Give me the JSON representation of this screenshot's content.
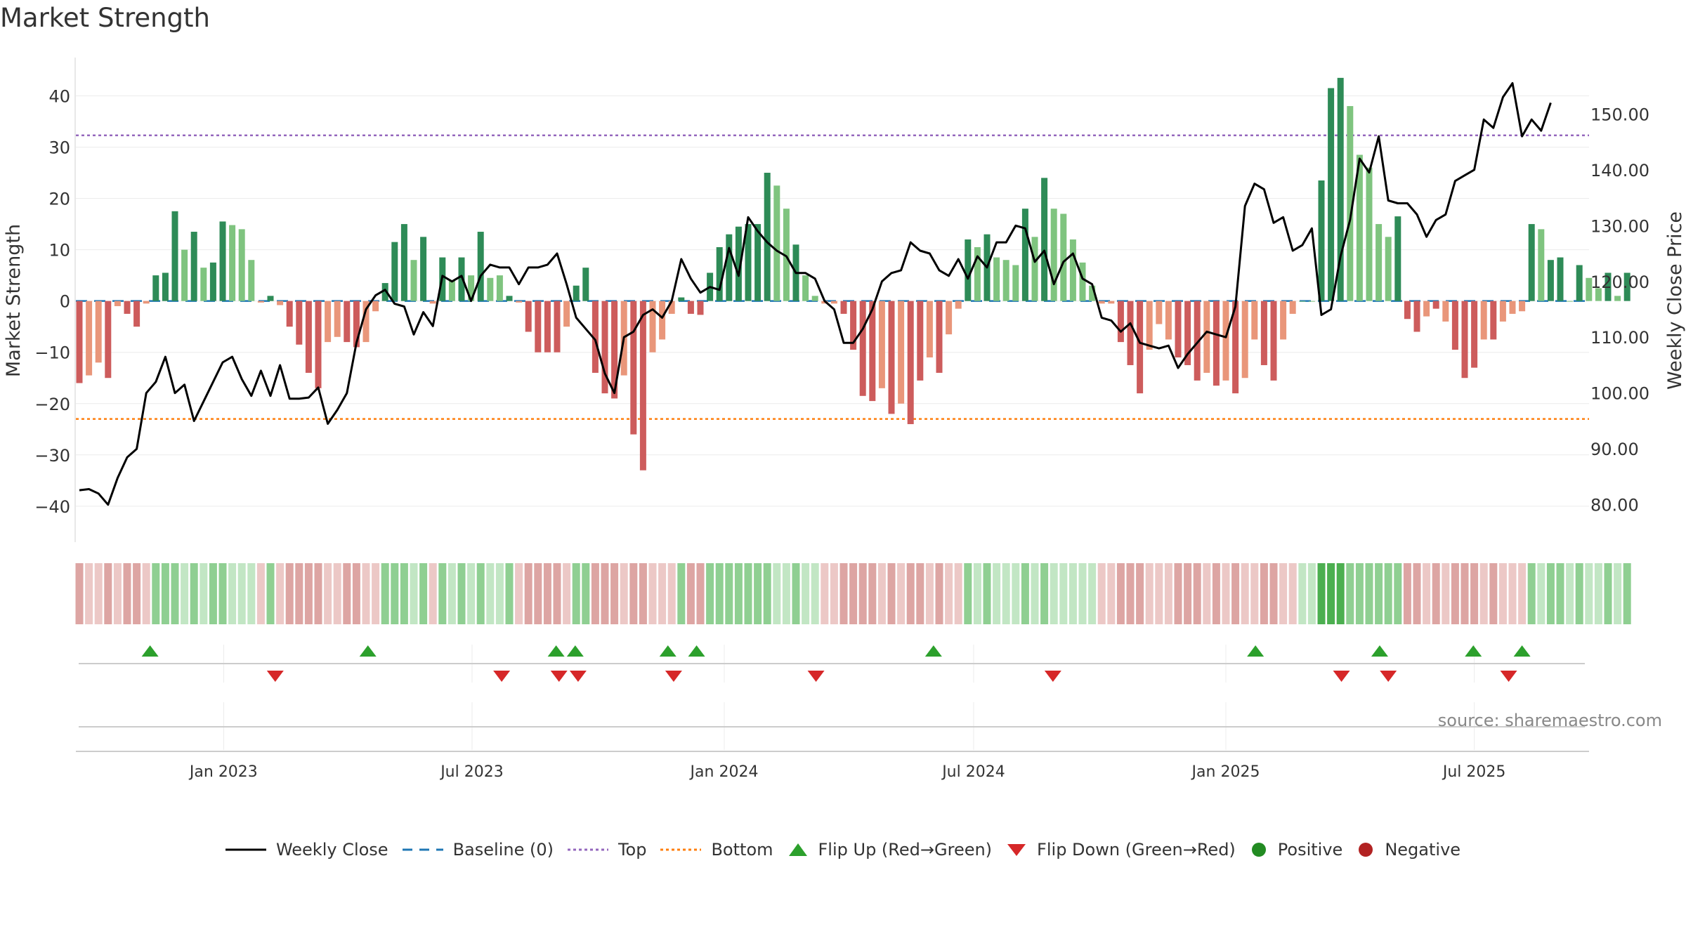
{
  "chart_data": {
    "type": "bar",
    "title": "Market Strength",
    "ylabel": "Market Strength",
    "y2label": "Weekly Close Price",
    "ylim": [
      -47,
      48
    ],
    "y2lim": [
      73.3,
      160.6
    ],
    "yticks": [
      40,
      30,
      20,
      10,
      0,
      -10,
      -20,
      -30,
      -40
    ],
    "yticklabels": [
      "40",
      "30",
      "20",
      "10",
      "0",
      "−10",
      "−20",
      "−30",
      "−40"
    ],
    "y2ticks": [
      150,
      140,
      130,
      120,
      110,
      100,
      90,
      80
    ],
    "y2ticklabels": [
      "150.00",
      "140.00",
      "130.00",
      "120.00",
      "110.00",
      "100.00",
      "90.00",
      "80.00"
    ],
    "xtick_labels": [
      "Jan 2023",
      "Jul 2023",
      "Jan 2024",
      "Jul 2024",
      "Jan 2025",
      "Jul 2025"
    ],
    "xtick_index": [
      15.1,
      41.1,
      67.5,
      93.6,
      120.0,
      146.0
    ],
    "top_line": 32.3,
    "bottom_line": -23.0,
    "grid": true,
    "colors": {
      "pos_strong": "#2e8b57",
      "pos_light": "#7fc47f",
      "neg_strong": "#cd5c5c",
      "neg_light": "#e9967a",
      "close_line": "#000000",
      "baseline": "#1f77b4",
      "top": "#9467bd",
      "bottom": "#ff7f0e",
      "flip_up": "#2ca02c",
      "flip_down": "#d62728"
    },
    "strength": [
      -16,
      -14.5,
      -12,
      -15,
      -1,
      -2.5,
      -5,
      -0.5,
      5,
      5.5,
      17.5,
      10,
      13.5,
      6.5,
      7.5,
      15.5,
      14.8,
      14,
      8,
      -0.3,
      1,
      -0.8,
      -5,
      -8.5,
      -14,
      -17,
      -8,
      -7,
      -8,
      -9,
      -8,
      -2,
      3.5,
      11.5,
      15,
      8,
      12.5,
      -0.5,
      8.5,
      4,
      8.5,
      5,
      13.5,
      4.5,
      5,
      1,
      -0.3,
      -6,
      -10,
      -10,
      -10,
      -5,
      3,
      6.5,
      -14,
      -18,
      -19,
      -14.5,
      -26,
      -33,
      -10,
      -7.5,
      -2.5,
      0.7,
      -2.5,
      -2.7,
      5.5,
      10.5,
      13,
      14.5,
      15,
      15,
      25,
      22.5,
      18,
      11,
      5,
      1,
      -0.5,
      -0.5,
      -2.5,
      -9.5,
      -18.5,
      -19.5,
      -17,
      -22,
      -20,
      -24,
      -15.5,
      -11,
      -14,
      -6.5,
      -1.5,
      12,
      10.5,
      13,
      8.5,
      8,
      7,
      18,
      12.5,
      24,
      18,
      17,
      12,
      7.5,
      3,
      -0.5,
      -0.5,
      -8,
      -12.5,
      -18,
      -9.5,
      -4.5,
      -7.5,
      -11,
      -12.5,
      -15.5,
      -14,
      -16.5,
      -15.5,
      -18,
      -15,
      -7.5,
      -12.5,
      -15.5,
      -7.5,
      -2.5,
      0,
      0,
      23.5,
      41.5,
      43.5,
      38,
      28.5,
      26,
      15,
      12.5,
      16.5,
      -3.5,
      -6,
      -3,
      -1.5,
      -4,
      -9.5,
      -15,
      -13,
      -7.5,
      -7.5,
      -4,
      -2.5,
      -2,
      15,
      14,
      8,
      8.5,
      0,
      7,
      4.5,
      2.5,
      5.5,
      1,
      5.5
    ],
    "strong": [
      1,
      0,
      0,
      1,
      0,
      1,
      1,
      0,
      1,
      1,
      1,
      0,
      1,
      0,
      1,
      1,
      0,
      0,
      0,
      0,
      1,
      0,
      1,
      1,
      1,
      1,
      0,
      0,
      1,
      1,
      0,
      0,
      1,
      1,
      1,
      0,
      1,
      0,
      1,
      0,
      1,
      0,
      1,
      0,
      0,
      1,
      0,
      1,
      1,
      1,
      1,
      0,
      1,
      1,
      1,
      1,
      1,
      0,
      1,
      1,
      0,
      0,
      0,
      1,
      1,
      1,
      1,
      1,
      1,
      1,
      1,
      1,
      1,
      0,
      0,
      1,
      0,
      0,
      0,
      0,
      1,
      1,
      1,
      1,
      0,
      1,
      0,
      1,
      1,
      0,
      1,
      0,
      0,
      1,
      0,
      1,
      0,
      0,
      0,
      1,
      0,
      1,
      0,
      0,
      0,
      0,
      0,
      0,
      0,
      1,
      1,
      1,
      0,
      0,
      0,
      1,
      1,
      1,
      0,
      1,
      0,
      1,
      0,
      0,
      1,
      1,
      0,
      0,
      0,
      0,
      1,
      1,
      1,
      0,
      0,
      0,
      0,
      0,
      1,
      1,
      1,
      0,
      1,
      0,
      1,
      1,
      1,
      0,
      1,
      0,
      0,
      0,
      1,
      0,
      1,
      1,
      0,
      1,
      0,
      0,
      1,
      0,
      1
    ],
    "close": [
      82.6,
      82.8,
      82,
      80,
      84.8,
      88.5,
      90,
      100,
      102,
      106.5,
      100,
      101.5,
      95,
      98.5,
      102,
      105.5,
      106.5,
      102.5,
      99.5,
      104,
      99.5,
      105,
      99,
      99,
      99.2,
      101,
      94.5,
      97,
      100,
      109,
      115,
      117.5,
      118.5,
      116,
      115.5,
      110.5,
      114.5,
      112,
      121,
      120,
      121,
      116.5,
      121,
      123,
      122.5,
      122.5,
      119.5,
      122.5,
      122.5,
      123,
      125,
      119.5,
      113.5,
      111.5,
      109.5,
      103.5,
      100,
      110,
      111,
      114,
      115,
      113.5,
      116.5,
      124,
      120.5,
      118,
      119,
      118.5,
      126,
      121,
      131.5,
      129,
      127,
      125.5,
      124.5,
      121.5,
      121.5,
      120.5,
      116.5,
      115,
      109,
      109,
      111.5,
      115,
      120,
      121.5,
      122,
      127,
      125.5,
      125,
      122,
      121,
      124,
      120.5,
      124.5,
      122.5,
      127,
      127,
      130,
      129.5,
      123.5,
      125.5,
      119.5,
      123.5,
      125,
      120.5,
      119.5,
      113.5,
      113,
      111,
      112.5,
      109,
      108.5,
      108,
      108.5,
      104.5,
      107,
      109,
      111,
      110.5,
      110,
      115.5,
      133.5,
      137.5,
      136.5,
      130.5,
      131.5,
      125.5,
      126.5,
      129.5,
      114,
      115,
      124.5,
      131,
      142,
      139.5,
      146,
      134.5,
      134,
      134,
      132,
      128,
      131,
      132,
      138,
      139,
      140,
      149,
      147.5,
      153,
      155.5,
      146,
      149,
      147,
      152
    ]
  },
  "secondary": {
    "strip_levels": [
      1,
      0,
      0,
      1,
      0,
      1,
      1,
      0,
      1,
      1,
      1,
      0,
      1,
      0,
      1,
      1,
      0,
      0,
      0,
      0,
      1,
      0,
      1,
      1,
      1,
      1,
      0,
      0,
      1,
      1,
      0,
      0,
      1,
      1,
      1,
      0,
      1,
      0,
      1,
      0,
      1,
      0,
      1,
      0,
      0,
      1,
      0,
      1,
      1,
      1,
      1,
      0,
      1,
      1,
      1,
      1,
      1,
      0,
      1,
      1,
      0,
      0,
      0,
      1,
      1,
      1,
      1,
      1,
      1,
      1,
      1,
      1,
      1,
      0,
      0,
      1,
      0,
      0,
      0,
      0,
      1,
      1,
      1,
      1,
      0,
      1,
      0,
      1,
      1,
      0,
      1,
      0,
      0,
      1,
      0,
      1,
      0,
      0,
      0,
      1,
      0,
      1,
      0,
      0,
      0,
      0,
      0,
      0,
      0,
      1,
      1,
      1,
      0,
      0,
      0,
      1,
      1,
      1,
      0,
      1,
      0,
      1,
      0,
      0,
      1,
      1,
      0,
      0,
      0,
      0,
      2,
      2,
      2,
      1,
      1,
      1,
      1,
      1,
      1,
      1,
      1,
      0,
      1,
      0,
      1,
      1,
      1,
      0,
      1,
      0,
      0,
      0,
      1,
      0,
      1,
      1,
      0,
      1,
      0,
      0,
      1,
      0,
      1
    ],
    "flip_up_index": [
      7.4,
      30.2,
      49.9,
      51.9,
      61.6,
      64.6,
      89.4,
      123.1,
      136.1,
      145.9,
      151
    ],
    "flip_down_index": [
      20.5,
      44.2,
      50.2,
      52.2,
      62.2,
      77.1,
      101.9,
      132.1,
      137,
      149.6
    ]
  },
  "source": "source: sharemaestro.com",
  "legend": {
    "weekly_close": "Weekly Close",
    "baseline": "Baseline (0)",
    "top": "Top",
    "bottom": "Bottom",
    "flip_up": "Flip Up (Red→Green)",
    "flip_down": "Flip Down (Green→Red)",
    "positive": "Positive",
    "negative": "Negative"
  }
}
